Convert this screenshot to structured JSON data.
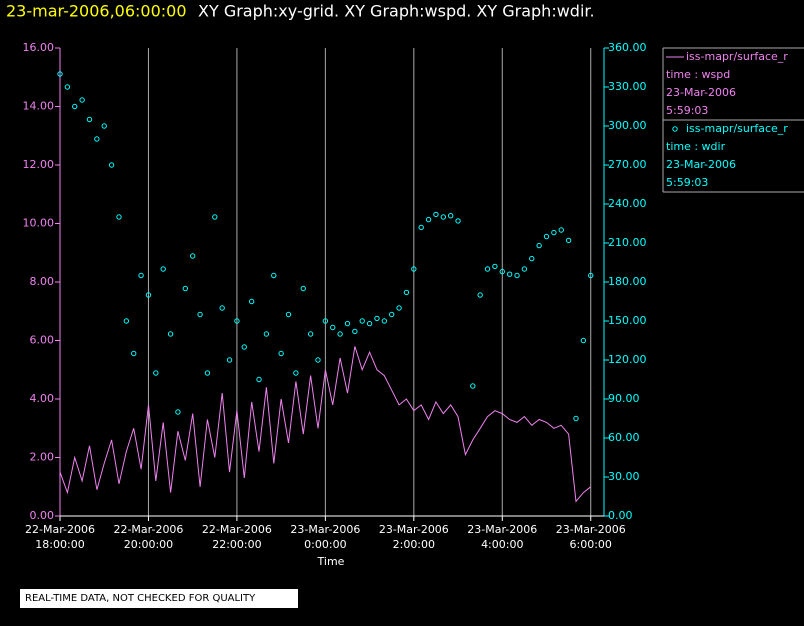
{
  "chart_data": {
    "type": "scatter-line",
    "title_time": "23-mar-2006,06:00:00",
    "title": "XY Graph:xy-grid.  XY Graph:wspd.  XY Graph:wdir.",
    "xlabel": "Time",
    "note": "REAL-TIME DATA, NOT CHECKED FOR QUALITY",
    "x": [
      "2006-03-22 18:00:00",
      "2006-03-22 18:10:00",
      "2006-03-22 18:20:00",
      "2006-03-22 18:30:00",
      "2006-03-22 18:40:00",
      "2006-03-22 18:50:00",
      "2006-03-22 19:00:00",
      "2006-03-22 19:10:00",
      "2006-03-22 19:20:00",
      "2006-03-22 19:30:00",
      "2006-03-22 19:40:00",
      "2006-03-22 19:50:00",
      "2006-03-22 20:00:00",
      "2006-03-22 20:10:00",
      "2006-03-22 20:20:00",
      "2006-03-22 20:30:00",
      "2006-03-22 20:40:00",
      "2006-03-22 20:50:00",
      "2006-03-22 21:00:00",
      "2006-03-22 21:10:00",
      "2006-03-22 21:20:00",
      "2006-03-22 21:30:00",
      "2006-03-22 21:40:00",
      "2006-03-22 21:50:00",
      "2006-03-22 22:00:00",
      "2006-03-22 22:10:00",
      "2006-03-22 22:20:00",
      "2006-03-22 22:30:00",
      "2006-03-22 22:40:00",
      "2006-03-22 22:50:00",
      "2006-03-22 23:00:00",
      "2006-03-22 23:10:00",
      "2006-03-22 23:20:00",
      "2006-03-22 23:30:00",
      "2006-03-22 23:40:00",
      "2006-03-22 23:50:00",
      "2006-03-23 00:00:00",
      "2006-03-23 00:10:00",
      "2006-03-23 00:20:00",
      "2006-03-23 00:30:00",
      "2006-03-23 00:40:00",
      "2006-03-23 00:50:00",
      "2006-03-23 01:00:00",
      "2006-03-23 01:10:00",
      "2006-03-23 01:20:00",
      "2006-03-23 01:30:00",
      "2006-03-23 01:40:00",
      "2006-03-23 01:50:00",
      "2006-03-23 02:00:00",
      "2006-03-23 02:10:00",
      "2006-03-23 02:20:00",
      "2006-03-23 02:30:00",
      "2006-03-23 02:40:00",
      "2006-03-23 02:50:00",
      "2006-03-23 03:00:00",
      "2006-03-23 03:10:00",
      "2006-03-23 03:20:00",
      "2006-03-23 03:30:00",
      "2006-03-23 03:40:00",
      "2006-03-23 03:50:00",
      "2006-03-23 04:00:00",
      "2006-03-23 04:10:00",
      "2006-03-23 04:20:00",
      "2006-03-23 04:30:00",
      "2006-03-23 04:40:00",
      "2006-03-23 04:50:00",
      "2006-03-23 05:00:00",
      "2006-03-23 05:10:00",
      "2006-03-23 05:20:00",
      "2006-03-23 05:30:00",
      "2006-03-23 05:40:00",
      "2006-03-23 05:50:00",
      "2006-03-23 06:00:00"
    ],
    "series": [
      {
        "name": "iss-mapr/surface_r",
        "legend_lines": [
          "time : wspd",
          "23-Mar-2006",
          "5:59:03"
        ],
        "color": "#ee82ee",
        "mark": "line",
        "values": [
          1.5,
          0.8,
          2.0,
          1.2,
          2.4,
          0.9,
          1.8,
          2.6,
          1.1,
          2.2,
          3.0,
          1.6,
          3.8,
          1.2,
          3.2,
          0.8,
          2.9,
          1.9,
          3.5,
          1.0,
          3.3,
          2.0,
          4.2,
          1.5,
          3.6,
          1.3,
          3.9,
          2.2,
          4.4,
          1.8,
          4.0,
          2.5,
          4.6,
          2.8,
          4.8,
          3.0,
          5.0,
          3.8,
          5.4,
          4.2,
          5.8,
          5.0,
          5.6,
          5.0,
          4.8,
          4.3,
          3.8,
          4.0,
          3.6,
          3.8,
          3.3,
          3.9,
          3.5,
          3.8,
          3.4,
          2.1,
          2.6,
          3.0,
          3.4,
          3.6,
          3.5,
          3.3,
          3.2,
          3.4,
          3.1,
          3.3,
          3.2,
          3.0,
          3.1,
          2.8,
          0.5,
          0.8,
          1.0
        ]
      },
      {
        "name": "iss-mapr/surface_r",
        "legend_lines": [
          "time : wdir",
          "23-Mar-2006",
          "5:59:03"
        ],
        "color": "#00ffff",
        "mark": "circle",
        "axis": "y2",
        "values": [
          340,
          330,
          315,
          320,
          305,
          290,
          300,
          270,
          230,
          150,
          125,
          185,
          170,
          110,
          190,
          140,
          80,
          175,
          200,
          155,
          110,
          230,
          160,
          120,
          150,
          130,
          165,
          105,
          140,
          185,
          125,
          155,
          110,
          175,
          140,
          120,
          150,
          145,
          140,
          148,
          142,
          150,
          148,
          152,
          150,
          155,
          160,
          172,
          190,
          222,
          228,
          232,
          230,
          231,
          227,
          null,
          100,
          170,
          190,
          192,
          188,
          186,
          185,
          190,
          198,
          208,
          215,
          218,
          220,
          212,
          75,
          135,
          185
        ]
      }
    ],
    "xlim": [
      "2006-03-22 18:00:00",
      "2006-03-23 06:18:00"
    ],
    "xticks": [
      {
        "value": "2006-03-22 18:00:00",
        "label": "22-Mar-2006 18:00:00"
      },
      {
        "value": "2006-03-22 20:00:00",
        "label": "22-Mar-2006 20:00:00"
      },
      {
        "value": "2006-03-22 22:00:00",
        "label": "22-Mar-2006 22:00:00"
      },
      {
        "value": "2006-03-23 00:00:00",
        "label": "23-Mar-2006 0:00:00"
      },
      {
        "value": "2006-03-23 02:00:00",
        "label": "23-Mar-2006 2:00:00"
      },
      {
        "value": "2006-03-23 04:00:00",
        "label": "23-Mar-2006 4:00:00"
      },
      {
        "value": "2006-03-23 06:00:00",
        "label": "23-Mar-2006 6:00:00"
      }
    ],
    "ylim": [
      0,
      16
    ],
    "yticks": [
      {
        "value": 0,
        "label": "0.00"
      },
      {
        "value": 2,
        "label": "2.00"
      },
      {
        "value": 4,
        "label": "4.00"
      },
      {
        "value": 6,
        "label": "6.00"
      },
      {
        "value": 8,
        "label": "8.00"
      },
      {
        "value": 10,
        "label": "10.00"
      },
      {
        "value": 12,
        "label": "12.00"
      },
      {
        "value": 14,
        "label": "14.00"
      },
      {
        "value": 16,
        "label": "16.00"
      }
    ],
    "y2lim": [
      0,
      360
    ],
    "y2ticks": [
      {
        "value": 0,
        "label": "0.00"
      },
      {
        "value": 30,
        "label": "30.00"
      },
      {
        "value": 60,
        "label": "60.00"
      },
      {
        "value": 90,
        "label": "90.00"
      },
      {
        "value": 120,
        "label": "120.00"
      },
      {
        "value": 150,
        "label": "150.00"
      },
      {
        "value": 180,
        "label": "180.00"
      },
      {
        "value": 210,
        "label": "210.00"
      },
      {
        "value": 240,
        "label": "240.00"
      },
      {
        "value": 270,
        "label": "270.00"
      },
      {
        "value": 300,
        "label": "300.00"
      },
      {
        "value": 330,
        "label": "330.00"
      },
      {
        "value": 360,
        "label": "360.00"
      }
    ],
    "grid": true
  }
}
